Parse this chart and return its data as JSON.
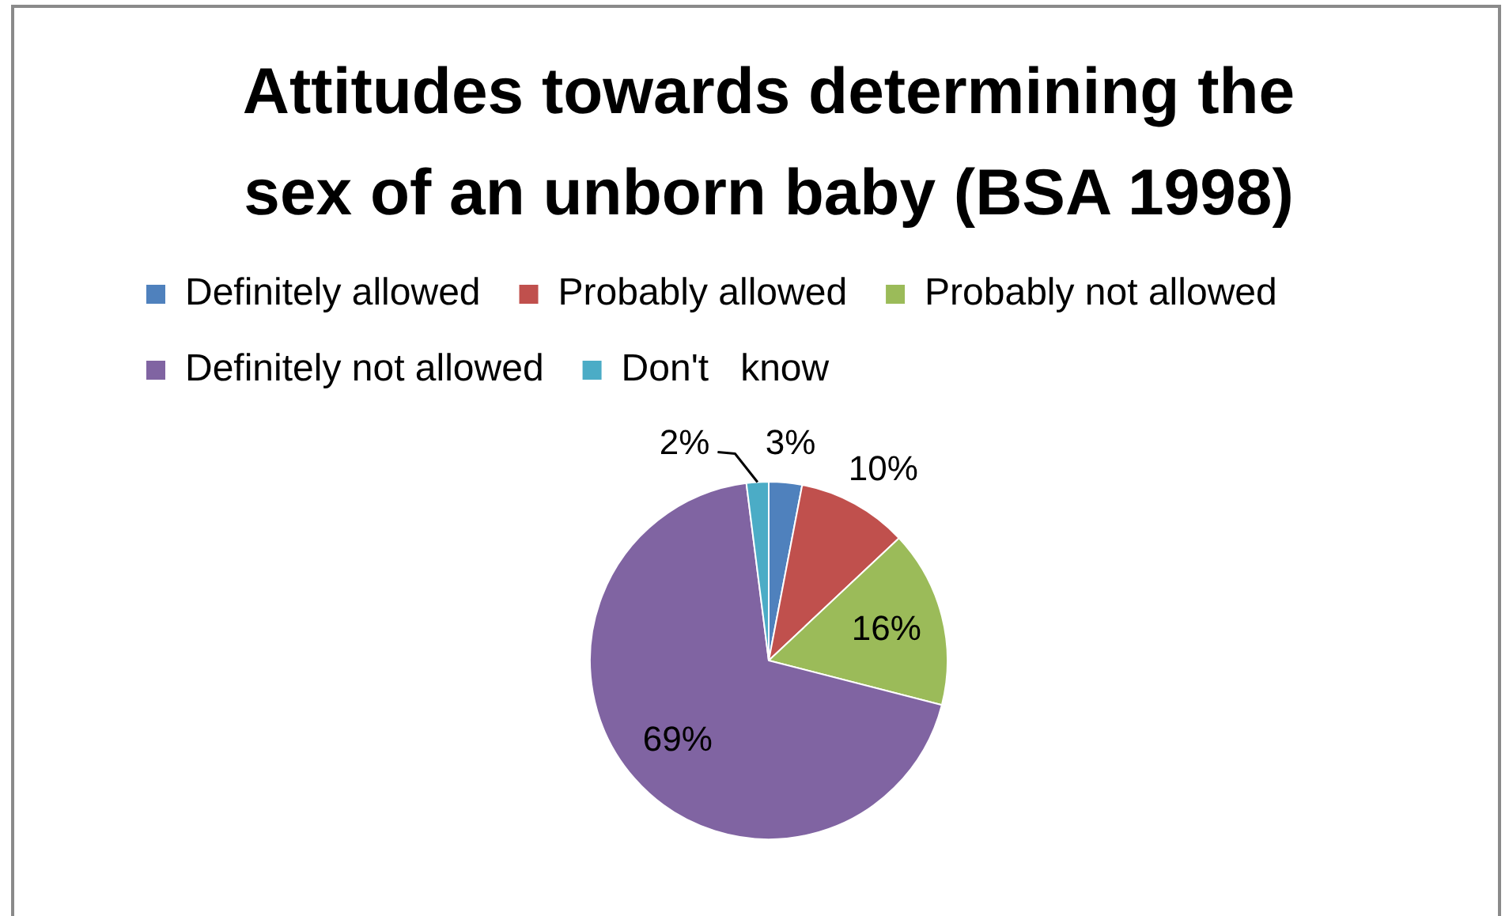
{
  "chart_data": {
    "type": "pie",
    "title": "Attitudes towards determining the sex of an unborn baby (BSA 1998)",
    "categories": [
      "Definitely allowed",
      "Probably allowed",
      "Probably not allowed",
      "Definitely not allowed",
      "Don't   know"
    ],
    "values": [
      3,
      10,
      16,
      69,
      2
    ],
    "colors": [
      "#4f81bd",
      "#c0504d",
      "#9bbb59",
      "#8064a2",
      "#4bacc6"
    ],
    "value_labels": [
      "3%",
      "10%",
      "16%",
      "69%",
      "2%"
    ],
    "legend": "top"
  }
}
